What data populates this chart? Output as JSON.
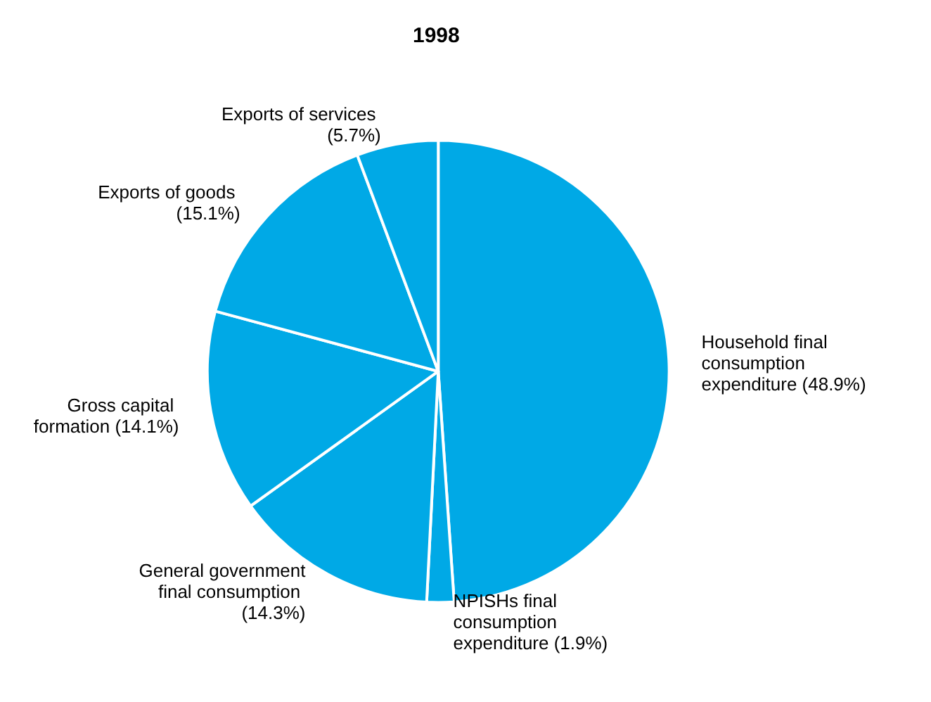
{
  "chart_data": {
    "type": "pie",
    "title": "1998",
    "categories": [
      "Household final consumption expenditure (48.9%)",
      "NPISHs final consumption expenditure (1.9%)",
      "General government final consumption (14.3%)",
      "Gross capital formation (14.1%)",
      "Exports of goods (15.1%)",
      "Exports of services (5.7%)"
    ],
    "values": [
      48.9,
      1.9,
      14.3,
      14.1,
      15.1,
      5.7
    ],
    "colors": [
      "#00a9e6",
      "#00a9e6",
      "#00a9e6",
      "#00a9e6",
      "#00a9e6",
      "#00a9e6"
    ],
    "legend": false
  }
}
